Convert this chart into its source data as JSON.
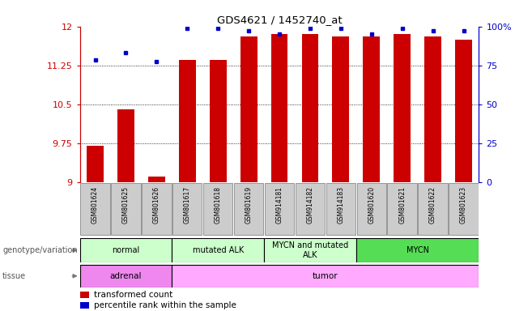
{
  "title": "GDS4621 / 1452740_at",
  "samples": [
    "GSM801624",
    "GSM801625",
    "GSM801626",
    "GSM801617",
    "GSM801618",
    "GSM801619",
    "GSM914181",
    "GSM914182",
    "GSM914183",
    "GSM801620",
    "GSM801621",
    "GSM801622",
    "GSM801623"
  ],
  "red_values": [
    9.7,
    10.4,
    9.1,
    11.35,
    11.35,
    11.8,
    11.85,
    11.85,
    11.8,
    11.8,
    11.85,
    11.8,
    11.75
  ],
  "blue_values": [
    11.36,
    11.5,
    11.32,
    11.96,
    11.96,
    11.92,
    11.85,
    11.96,
    11.96,
    11.85,
    11.96,
    11.92,
    11.92
  ],
  "y_min": 9.0,
  "y_max": 12.0,
  "y_ticks": [
    9.0,
    9.75,
    10.5,
    11.25,
    12.0
  ],
  "y_tick_labels": [
    "9",
    "9.75",
    "10.5",
    "11.25",
    "12"
  ],
  "right_y_tick_labels": [
    "0",
    "25",
    "50",
    "75",
    "100%"
  ],
  "left_axis_color": "#cc0000",
  "right_axis_color": "#0000cc",
  "bar_color": "#cc0000",
  "dot_color": "#0000cc",
  "geno_colors": [
    "#ccffcc",
    "#ccffcc",
    "#ccffcc",
    "#55dd55"
  ],
  "geno_labels": [
    "normal",
    "mutated ALK",
    "MYCN and mutated\nALK",
    "MYCN"
  ],
  "geno_starts": [
    0,
    3,
    6,
    9
  ],
  "geno_ends": [
    3,
    6,
    9,
    13
  ],
  "tissue_colors": [
    "#ee88ee",
    "#ffaaff"
  ],
  "tissue_labels": [
    "adrenal",
    "tumor"
  ],
  "tissue_starts": [
    0,
    3
  ],
  "tissue_ends": [
    3,
    13
  ],
  "background_color": "#ffffff"
}
